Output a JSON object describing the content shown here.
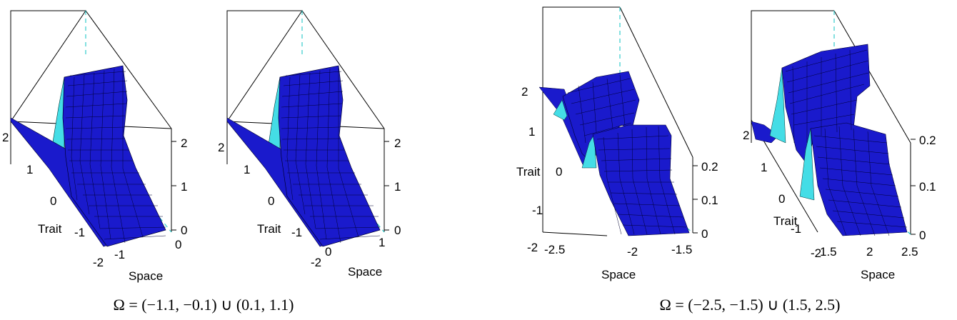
{
  "chart_data": [
    {
      "type": "surface",
      "group": 0,
      "xlabel": "Space",
      "ylabel": "Trait",
      "x_ticks": [
        "-2",
        "-1"
      ],
      "y_ticks": [
        "2",
        "1",
        "0",
        "-1",
        "-2"
      ],
      "z_ticks": [
        "0",
        "1",
        "2"
      ],
      "x_range": [
        -2,
        0
      ],
      "y_range": [
        -2,
        2
      ],
      "z_range": [
        0,
        2.2
      ],
      "peak_trait": 1.0
    },
    {
      "type": "surface",
      "group": 0,
      "xlabel": "Space",
      "ylabel": "Trait",
      "x_ticks": [
        "0",
        "1"
      ],
      "y_ticks": [
        "2",
        "1",
        "0",
        "-1",
        "-2"
      ],
      "z_ticks": [
        "0",
        "1",
        "2"
      ],
      "x_range": [
        0,
        1.1
      ],
      "y_range": [
        -2,
        2
      ],
      "z_range": [
        0,
        2.2
      ],
      "peak_trait": 1.0
    },
    {
      "type": "surface",
      "group": 1,
      "xlabel": "Space",
      "ylabel": "Trait",
      "x_ticks": [
        "-2.5",
        "-2",
        "-1.5"
      ],
      "y_ticks": [
        "2",
        "1",
        "0",
        "-1",
        "-2"
      ],
      "z_ticks": [
        "0",
        "0.1",
        "0.2"
      ],
      "x_range": [
        -2.5,
        -1.5
      ],
      "y_range": [
        -2,
        2
      ],
      "z_range": [
        0,
        0.22
      ],
      "peak_trait": 1.0
    },
    {
      "type": "surface",
      "group": 1,
      "xlabel": "Space",
      "ylabel": "Trait",
      "x_ticks": [
        "1.5",
        "2",
        "2.5"
      ],
      "y_ticks": [
        "2",
        "1",
        "0",
        "-1",
        "-2"
      ],
      "z_ticks": [
        "0",
        "0.1",
        "0.2"
      ],
      "x_range": [
        1.5,
        2.5
      ],
      "y_range": [
        -2,
        2
      ],
      "z_range": [
        0,
        0.22
      ],
      "peak_trait": 1.0
    }
  ],
  "captions": [
    "Ω = (−1.1, −0.1) ∪ (0.1, 1.1)",
    "Ω = (−2.5, −1.5) ∪ (1.5, 2.5)"
  ],
  "colors": {
    "surface_front": "#1a1acc",
    "surface_back": "#44dde6",
    "mesh": "#000033",
    "box": "#000000",
    "dashed": "#33cccc"
  }
}
